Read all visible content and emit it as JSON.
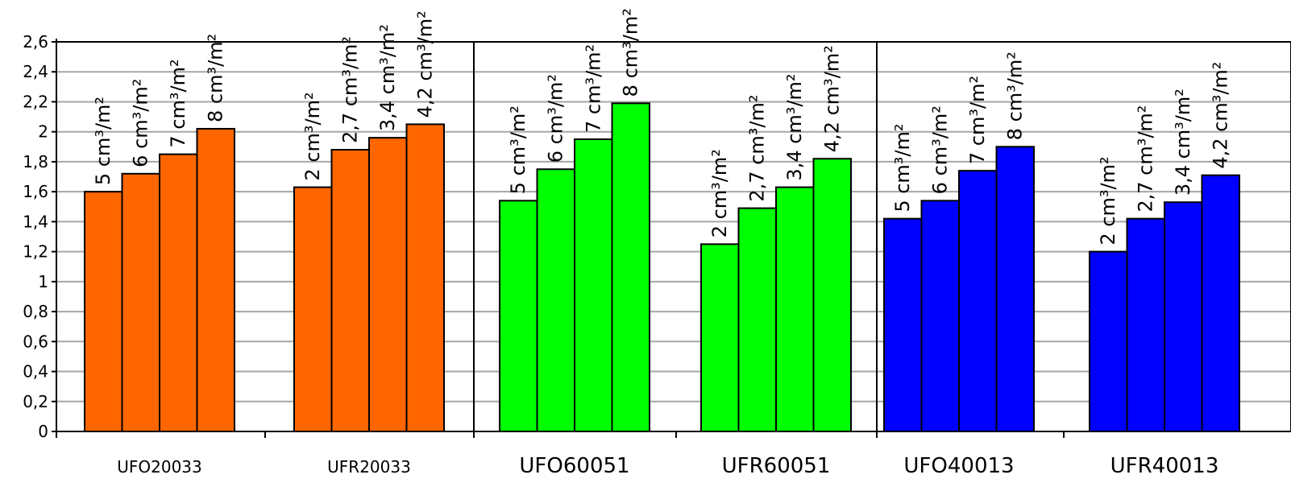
{
  "chart_data": {
    "type": "bar",
    "title": "",
    "xlabel": "",
    "ylabel": "",
    "ylim": [
      0,
      2.6
    ],
    "y_ticks": [
      "0",
      "0,2",
      "0,4",
      "0,6",
      "0,8",
      "1",
      "1,2",
      "1,4",
      "1,6",
      "1,8",
      "2",
      "2,2",
      "2,4",
      "2,6"
    ],
    "grid": true,
    "legend": "none",
    "panels": [
      {
        "color": "#FF6600",
        "groups": [
          {
            "category": "UFO20033",
            "values": [
              1.6,
              1.72,
              1.85,
              2.02
            ],
            "labels": [
              "5 cm³/m²",
              "6 cm³/m²",
              "7 cm³/m²",
              "8 cm³/m²"
            ]
          },
          {
            "category": "UFR20033",
            "values": [
              1.63,
              1.88,
              1.96,
              2.05
            ],
            "labels": [
              "2 cm³/m²",
              "2,7 cm³/m²",
              "3,4 cm³/m²",
              "4,2 cm³/m²"
            ]
          }
        ]
      },
      {
        "color": "#00FF00",
        "groups": [
          {
            "category": "UFO60051",
            "values": [
              1.54,
              1.75,
              1.95,
              2.19
            ],
            "labels": [
              "5 cm³/m²",
              "6 cm³/m²",
              "7 cm³/m²",
              "8 cm³/m²"
            ]
          },
          {
            "category": "UFR60051",
            "values": [
              1.25,
              1.49,
              1.63,
              1.82
            ],
            "labels": [
              "2 cm³/m²",
              "2,7 cm³/m²",
              "3,4 cm³/m²",
              "4,2 cm³/m²"
            ]
          }
        ]
      },
      {
        "color": "#0000FF",
        "groups": [
          {
            "category": "UFO40013",
            "values": [
              1.42,
              1.54,
              1.74,
              1.9
            ],
            "labels": [
              "5 cm³/m²",
              "6 cm³/m²",
              "7 cm³/m²",
              "8 cm³/m²"
            ]
          },
          {
            "category": "UFR40013",
            "values": [
              1.2,
              1.42,
              1.53,
              1.71
            ],
            "labels": [
              "2 cm³/m²",
              "2,7 cm³/m²",
              "3,4 cm³/m²",
              "4,2 cm³/m²"
            ]
          }
        ]
      }
    ]
  }
}
